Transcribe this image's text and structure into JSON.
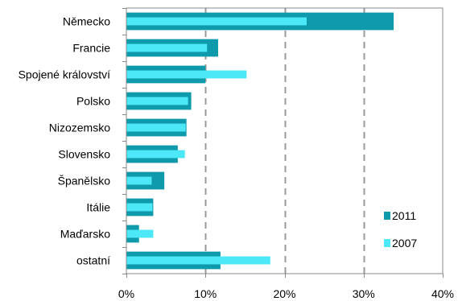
{
  "chart_data": {
    "type": "bar",
    "orientation": "horizontal",
    "categories": [
      "Německo",
      "Francie",
      "Spojené království",
      "Polsko",
      "Nizozemsko",
      "Slovensko",
      "Španělsko",
      "Itálie",
      "Maďarsko",
      "ostatní"
    ],
    "series": [
      {
        "name": "2011",
        "color": "#0e9aaa",
        "values": [
          33.8,
          11.6,
          10.0,
          8.2,
          7.6,
          6.5,
          4.8,
          3.4,
          1.6,
          11.9
        ]
      },
      {
        "name": "2007",
        "color": "#4de8f8",
        "values": [
          22.8,
          10.2,
          15.2,
          7.8,
          7.5,
          7.4,
          3.2,
          3.3,
          3.4,
          18.2
        ]
      }
    ],
    "xlim": [
      0,
      40
    ],
    "xticks": [
      0,
      10,
      20,
      30,
      40
    ],
    "xtick_labels": [
      "0%",
      "10%",
      "20%",
      "30%",
      "40%"
    ],
    "grid": "vertical dashed",
    "legend": "bottom-right, inside plot"
  }
}
